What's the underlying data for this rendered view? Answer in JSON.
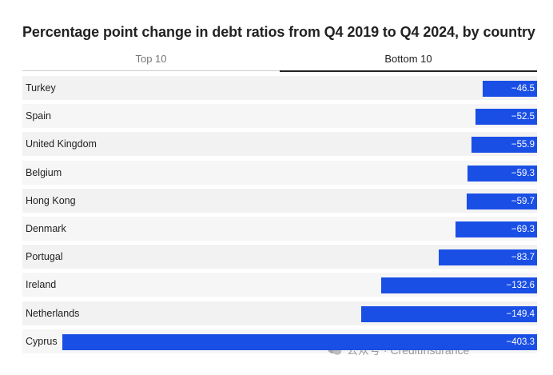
{
  "title": "Percentage point change in debt ratios from Q4 2019 to Q4 2024, by country",
  "tabs": {
    "top": "Top 10",
    "bottom": "Bottom 10",
    "active": "Bottom 10"
  },
  "colors": {
    "bar": "#1a4fe6",
    "active_tab_border": "#222222"
  },
  "chart_data": {
    "type": "bar",
    "orientation": "horizontal",
    "title": "Percentage point change in debt ratios from Q4 2019 to Q4 2024, by country",
    "categories": [
      "Turkey",
      "Spain",
      "United Kingdom",
      "Belgium",
      "Hong Kong",
      "Denmark",
      "Portugal",
      "Ireland",
      "Netherlands",
      "Cyprus"
    ],
    "values": [
      -46.5,
      -52.5,
      -55.9,
      -59.3,
      -59.7,
      -69.3,
      -83.7,
      -132.6,
      -149.4,
      -403.3
    ],
    "value_labels": [
      "−46.5",
      "−52.5",
      "−55.9",
      "−59.3",
      "−59.7",
      "−69.3",
      "−83.7",
      "−132.6",
      "−149.4",
      "−403.3"
    ],
    "xlim": [
      -403.3,
      0
    ],
    "grid": false,
    "legend": "none"
  },
  "watermark": {
    "icon": "wechat-icon",
    "text": "公众号 · CreditInsurance"
  }
}
